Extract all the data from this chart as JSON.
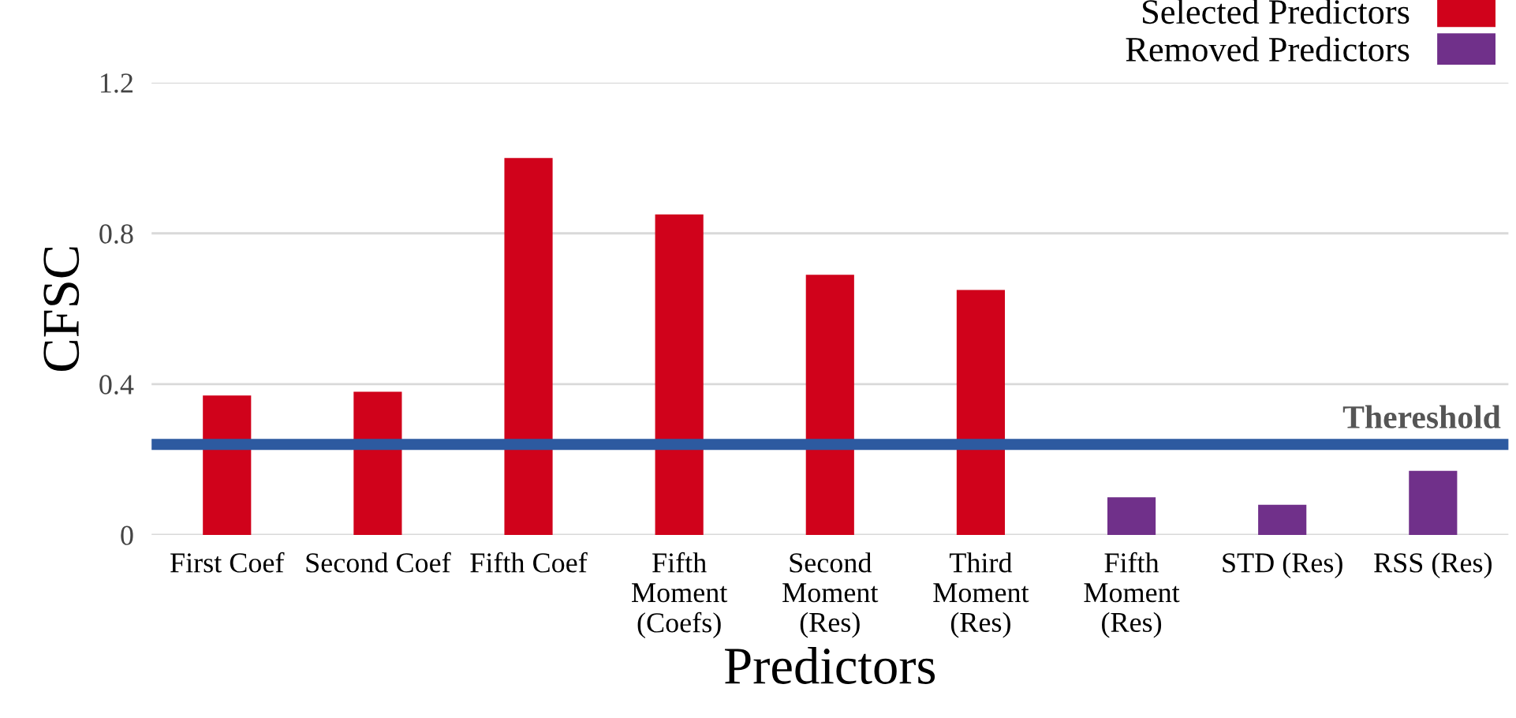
{
  "chart_data": {
    "type": "bar",
    "xlabel": "Predictors",
    "ylabel": "CFSC",
    "categories": [
      "First Coef",
      "Second Coef",
      "Fifth Coef",
      "Fifth\nMoment\n(Coefs)",
      "Second\nMoment\n(Res)",
      "Third\nMoment\n(Res)",
      "Fifth\nMoment\n(Res)",
      "STD (Res)",
      "RSS (Res)"
    ],
    "series": [
      {
        "name": "Selected Predictors",
        "color": "#d0021b",
        "values": [
          0.37,
          0.38,
          1.0,
          0.85,
          0.69,
          0.65,
          null,
          null,
          null
        ]
      },
      {
        "name": "Removed Predictors",
        "color": "#70308a",
        "values": [
          null,
          null,
          null,
          null,
          null,
          null,
          0.1,
          0.08,
          0.17
        ]
      }
    ],
    "ylim": [
      0,
      1.2
    ],
    "yticks": [
      0,
      0.4,
      0.8,
      1.2
    ],
    "grid": "y",
    "legend": "top right",
    "ref_lines": [
      {
        "axis": "y",
        "value": 0.24,
        "label": "Thereshold",
        "color": "#2d5aa0"
      }
    ]
  }
}
